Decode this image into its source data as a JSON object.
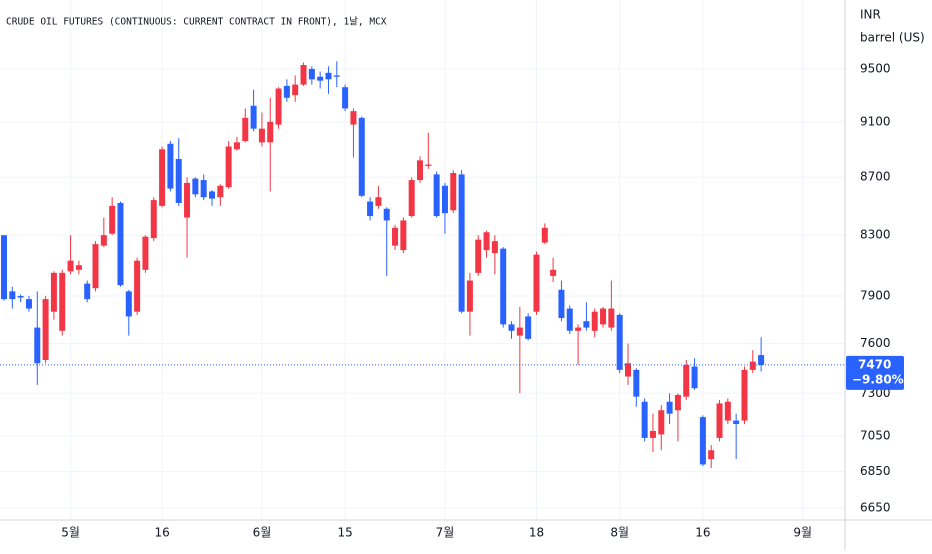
{
  "chart_data": {
    "type": "candlestick",
    "title": "CRUDE OIL FUTURES (CONTINUOUS: CURRENT CONTRACT IN FRONT), 1날, MCX",
    "currency": "INR",
    "unit": "barrel (US)",
    "log_scale": true,
    "grid": true,
    "up_color": "#f23645",
    "down_color": "#2962ff",
    "ylim": [
      6586,
      10047
    ],
    "yticks": [
      6650,
      6850,
      7050,
      7300,
      7600,
      7900,
      8300,
      8700,
      9100,
      9500
    ],
    "last_change": {
      "value": -9.8,
      "label": "−9.80%"
    },
    "categories": [
      null,
      null,
      null,
      null,
      null,
      null,
      null,
      null,
      "5월",
      null,
      null,
      null,
      null,
      null,
      null,
      null,
      null,
      null,
      null,
      "16",
      null,
      null,
      null,
      null,
      null,
      null,
      null,
      null,
      null,
      null,
      null,
      "6월",
      null,
      null,
      null,
      null,
      null,
      null,
      null,
      null,
      null,
      "15",
      null,
      null,
      null,
      null,
      null,
      null,
      null,
      null,
      null,
      null,
      null,
      "7월",
      null,
      null,
      null,
      null,
      null,
      null,
      null,
      null,
      null,
      null,
      "18",
      null,
      null,
      null,
      null,
      null,
      null,
      null,
      null,
      null,
      "8월",
      null,
      null,
      null,
      null,
      null,
      null,
      null,
      null,
      null,
      "16",
      null,
      null,
      null,
      null,
      null,
      null,
      null,
      null,
      null,
      null,
      null,
      "9월",
      null,
      null,
      null,
      null
    ],
    "open": [
      8300,
      7930,
      7900,
      7880,
      7700,
      7500,
      7800,
      7680,
      8060,
      8070,
      7980,
      7950,
      8230,
      8310,
      8520,
      7930,
      7800,
      8070,
      8280,
      8500,
      8940,
      8830,
      8420,
      8690,
      8680,
      8600,
      8560,
      8630,
      8900,
      8960,
      9220,
      8950,
      8950,
      9080,
      9370,
      9300,
      9380,
      9500,
      9440,
      9470,
      9450,
      9360,
      9080,
      9130,
      8530,
      8500,
      8480,
      8230,
      8200,
      8430,
      8680,
      8780,
      8720,
      8640,
      8470,
      8720,
      7800,
      8050,
      8200,
      8180,
      8210,
      7720,
      7650,
      7770,
      7800,
      8250,
      8030,
      7940,
      7820,
      7680,
      7740,
      7680,
      7720,
      7700,
      7780,
      7400,
      7440,
      7250,
      7040,
      7060,
      7250,
      7200,
      7280,
      7460,
      7160,
      6920,
      7040,
      7140,
      7140,
      7140,
      7440,
      7530,
      null,
      null,
      null,
      null,
      null,
      null,
      null,
      null,
      null
    ],
    "high": [
      8300,
      7960,
      7910,
      7900,
      7930,
      7900,
      8060,
      8070,
      8300,
      8130,
      8000,
      8260,
      8420,
      8560,
      8530,
      7940,
      8150,
      8300,
      8560,
      8920,
      8960,
      8980,
      8700,
      8700,
      8720,
      8610,
      8650,
      8960,
      8990,
      9200,
      9340,
      9170,
      9280,
      9360,
      9420,
      9450,
      9550,
      9520,
      9480,
      9520,
      9560,
      9380,
      9200,
      9140,
      8560,
      8640,
      8490,
      8370,
      8420,
      8700,
      8850,
      9020,
      8740,
      8660,
      8750,
      8750,
      8050,
      8300,
      8330,
      8300,
      8220,
      7740,
      7830,
      7790,
      8190,
      8380,
      8150,
      8000,
      7840,
      7720,
      7860,
      7820,
      7830,
      8000,
      7790,
      7600,
      7450,
      7270,
      7180,
      7230,
      7300,
      7300,
      7500,
      7510,
      7170,
      7000,
      7260,
      7270,
      7180,
      7460,
      7560,
      7640,
      null,
      null,
      null,
      null,
      null,
      null,
      null,
      null,
      null
    ],
    "low": [
      7870,
      7820,
      7860,
      7800,
      7350,
      7480,
      7750,
      7650,
      8040,
      8040,
      7860,
      7930,
      8220,
      8300,
      7960,
      7650,
      7780,
      8050,
      8260,
      8490,
      8600,
      8500,
      8150,
      8560,
      8540,
      8500,
      8500,
      8620,
      8890,
      8950,
      9030,
      8920,
      8600,
      9050,
      9250,
      9250,
      9370,
      9380,
      9350,
      9310,
      9360,
      9180,
      8840,
      8560,
      8400,
      8480,
      8030,
      8200,
      8180,
      8420,
      8660,
      8760,
      8420,
      8310,
      8450,
      7790,
      7650,
      8030,
      8150,
      8040,
      7700,
      7630,
      7300,
      7620,
      7780,
      8240,
      7990,
      7740,
      7660,
      7470,
      7680,
      7640,
      7700,
      7680,
      7420,
      7350,
      7220,
      7020,
      6960,
      6970,
      7120,
      7020,
      7260,
      7320,
      6880,
      6870,
      7020,
      7120,
      6920,
      7120,
      7420,
      7430,
      null,
      null,
      null,
      null,
      null,
      null,
      null,
      null,
      null
    ],
    "close": [
      7880,
      7880,
      7890,
      7820,
      7480,
      7880,
      8050,
      8050,
      8130,
      8100,
      7880,
      8240,
      8300,
      8500,
      7970,
      7770,
      8130,
      8290,
      8540,
      8900,
      8620,
      8520,
      8660,
      8580,
      8560,
      8550,
      8640,
      8920,
      8950,
      9130,
      9050,
      9050,
      9100,
      9350,
      9280,
      9380,
      9530,
      9420,
      9410,
      9420,
      9440,
      9200,
      9180,
      8570,
      8430,
      8560,
      8400,
      8350,
      8400,
      8680,
      8820,
      8790,
      8430,
      8450,
      8730,
      7800,
      8000,
      8270,
      8320,
      8260,
      7720,
      7680,
      7700,
      7630,
      8170,
      8350,
      8070,
      7760,
      7680,
      7700,
      7700,
      7800,
      7820,
      7820,
      7440,
      7480,
      7280,
      7040,
      7080,
      7200,
      7180,
      7290,
      7470,
      7330,
      6890,
      6970,
      7240,
      7250,
      7120,
      7440,
      7490,
      7470,
      null,
      null,
      null,
      null,
      null,
      null,
      null,
      null,
      null
    ]
  }
}
